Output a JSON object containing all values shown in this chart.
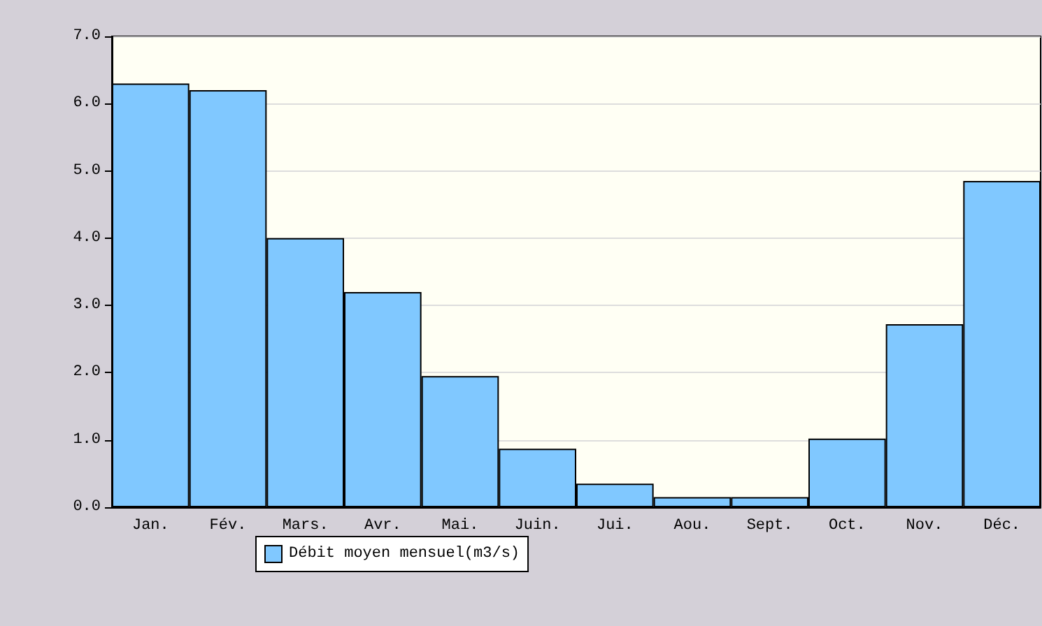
{
  "chart_data": {
    "type": "bar",
    "categories": [
      "Jan.",
      "Fév.",
      "Mars.",
      "Avr.",
      "Mai.",
      "Juin.",
      "Jui.",
      "Aou.",
      "Sept.",
      "Oct.",
      "Nov.",
      "Déc."
    ],
    "series": [
      {
        "name": "Débit moyen mensuel(m3/s)",
        "color": "#80c8ff",
        "values": [
          6.3,
          6.2,
          4.0,
          3.2,
          1.95,
          0.87,
          0.35,
          0.15,
          0.15,
          1.02,
          2.72,
          4.85
        ]
      }
    ],
    "ylim": [
      0,
      7
    ],
    "yticks": [
      {
        "value": 0,
        "label": "0.0"
      },
      {
        "value": 1,
        "label": "1.0"
      },
      {
        "value": 2,
        "label": "2.0"
      },
      {
        "value": 3,
        "label": "3.0"
      },
      {
        "value": 4,
        "label": "4.0"
      },
      {
        "value": 5,
        "label": "5.0"
      },
      {
        "value": 6,
        "label": "6.0"
      },
      {
        "value": 7,
        "label": "7.0"
      }
    ],
    "grid": "y",
    "legend": "bottom left"
  }
}
